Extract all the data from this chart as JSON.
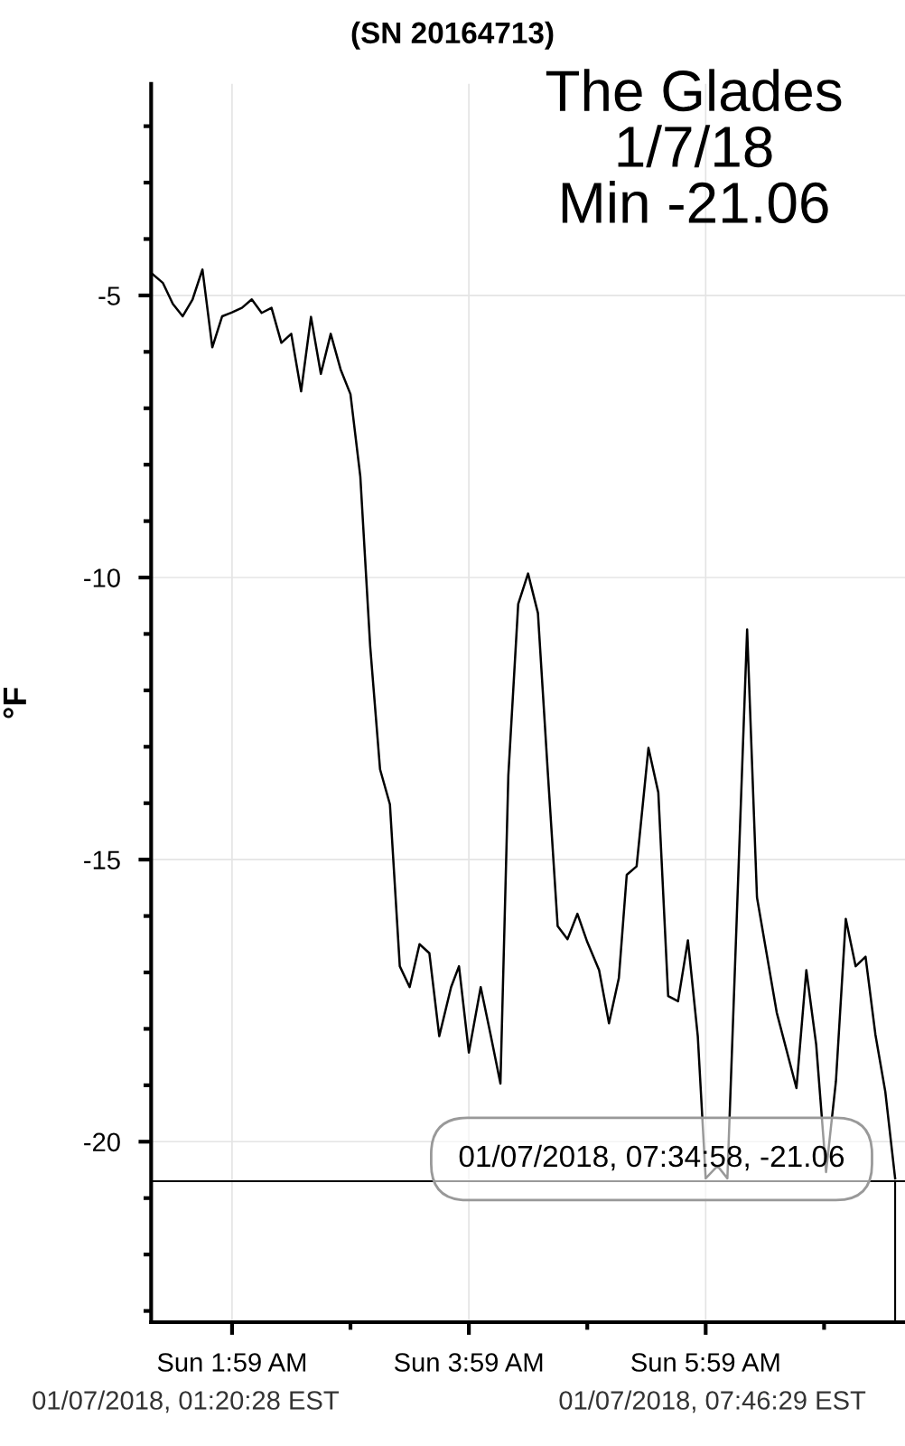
{
  "chart_data": {
    "type": "line",
    "title": "(SN 20164713)",
    "ylabel": "°F",
    "annotations": [
      "The Glades\n1/7/18\nMin -21.06",
      "01/07/2018, 01:20:28 EST",
      "01/07/2018, 07:46:29 EST",
      "01/07/2018, 07:34:58, -21.06"
    ],
    "x": [
      "2018-01-07T01:18",
      "2018-01-07T01:24",
      "2018-01-07T01:29",
      "2018-01-07T01:34",
      "2018-01-07T01:39",
      "2018-01-07T01:44",
      "2018-01-07T01:49",
      "2018-01-07T01:54",
      "2018-01-07T01:59",
      "2018-01-07T02:04",
      "2018-01-07T02:09",
      "2018-01-07T02:14",
      "2018-01-07T02:19",
      "2018-01-07T02:24",
      "2018-01-07T02:29",
      "2018-01-07T02:34",
      "2018-01-07T02:39",
      "2018-01-07T02:44",
      "2018-01-07T02:49",
      "2018-01-07T02:54",
      "2018-01-07T02:59",
      "2018-01-07T03:04",
      "2018-01-07T03:09",
      "2018-01-07T03:14",
      "2018-01-07T03:19",
      "2018-01-07T03:24",
      "2018-01-07T03:29",
      "2018-01-07T03:34",
      "2018-01-07T03:39",
      "2018-01-07T03:44",
      "2018-01-07T03:50",
      "2018-01-07T03:54",
      "2018-01-07T03:59",
      "2018-01-07T04:05",
      "2018-01-07T04:10",
      "2018-01-07T04:15",
      "2018-01-07T04:19",
      "2018-01-07T04:24",
      "2018-01-07T04:29",
      "2018-01-07T04:34",
      "2018-01-07T04:39",
      "2018-01-07T04:44",
      "2018-01-07T04:49",
      "2018-01-07T04:54",
      "2018-01-07T04:59",
      "2018-01-07T05:05",
      "2018-01-07T05:10",
      "2018-01-07T05:15",
      "2018-01-07T05:19",
      "2018-01-07T05:24",
      "2018-01-07T05:30",
      "2018-01-07T05:35",
      "2018-01-07T05:40",
      "2018-01-07T05:45",
      "2018-01-07T05:50",
      "2018-01-07T05:55",
      "2018-01-07T05:59",
      "2018-01-07T06:05",
      "2018-01-07T06:10",
      "2018-01-07T06:20",
      "2018-01-07T06:25",
      "2018-01-07T06:35",
      "2018-01-07T06:45",
      "2018-01-07T06:50",
      "2018-01-07T06:55",
      "2018-01-07T07:00",
      "2018-01-07T07:05",
      "2018-01-07T07:10",
      "2018-01-07T07:15",
      "2018-01-07T07:20",
      "2018-01-07T07:25",
      "2018-01-07T07:30",
      "2018-01-07T07:35"
    ],
    "series": [
      {
        "color": "#000000",
        "values": [
          -4.6,
          -4.78,
          -5.15,
          -5.37,
          -5.07,
          -4.54,
          -5.92,
          -5.37,
          -5.3,
          -5.22,
          -5.07,
          -5.31,
          -5.22,
          -5.84,
          -5.68,
          -6.7,
          -5.38,
          -6.39,
          -5.68,
          -6.31,
          -6.75,
          -8.21,
          -11.22,
          -13.4,
          -14.02,
          -16.89,
          -17.26,
          -16.5,
          -16.66,
          -18.13,
          -17.26,
          -16.89,
          -18.42,
          -17.26,
          -18.1,
          -18.97,
          -13.51,
          -10.47,
          -9.93,
          -10.63,
          -13.45,
          -16.18,
          -16.41,
          -15.96,
          -16.46,
          -16.96,
          -17.9,
          -17.1,
          -15.27,
          -15.12,
          -13.02,
          -13.81,
          -17.42,
          -17.51,
          -16.43,
          -18.13,
          -20.65,
          -20.43,
          -20.65,
          -10.92,
          -15.67,
          -17.71,
          -19.05,
          -16.96,
          -18.28,
          -20.54,
          -18.93,
          -16.05,
          -16.89,
          -16.72,
          -18.1,
          -19.11,
          -20.65
        ]
      }
    ],
    "xlim": [
      "2018-01-07T01:18",
      "2018-01-07T07:40"
    ],
    "xticks": [
      {
        "value": "2018-01-07T01:59",
        "label": "Sun 1:59 AM"
      },
      {
        "value": "2018-01-07T02:59",
        "label": null
      },
      {
        "value": "2018-01-07T03:59",
        "label": "Sun 3:59 AM"
      },
      {
        "value": "2018-01-07T04:59",
        "label": null
      },
      {
        "value": "2018-01-07T05:59",
        "label": "Sun 5:59 AM"
      },
      {
        "value": "2018-01-07T06:59",
        "label": null
      }
    ],
    "ylim": [
      -23.2,
      -1.25
    ],
    "yticks": [
      {
        "value": -2,
        "label": null
      },
      {
        "value": -3,
        "label": null
      },
      {
        "value": -4,
        "label": null
      },
      -5,
      {
        "value": -6,
        "label": null
      },
      {
        "value": -7,
        "label": null
      },
      {
        "value": -8,
        "label": null
      },
      {
        "value": -9,
        "label": null
      },
      -10,
      {
        "value": -11,
        "label": null
      },
      {
        "value": -12,
        "label": null
      },
      {
        "value": -13,
        "label": null
      },
      {
        "value": -14,
        "label": null
      },
      -15,
      {
        "value": -16,
        "label": null
      },
      {
        "value": -17,
        "label": null
      },
      {
        "value": -18,
        "label": null
      },
      {
        "value": -19,
        "label": null
      },
      -20,
      {
        "value": -21,
        "label": null
      },
      {
        "value": -22,
        "label": null
      },
      {
        "value": -23,
        "label": null
      }
    ],
    "ref_lines": [
      {
        "axis": "y",
        "value": -20.7,
        "color": "#000000"
      },
      {
        "axis": "x",
        "value": "2018-01-07T07:35",
        "color": "#000000"
      }
    ],
    "grid": true,
    "marker": "none",
    "line_style": "solid"
  }
}
